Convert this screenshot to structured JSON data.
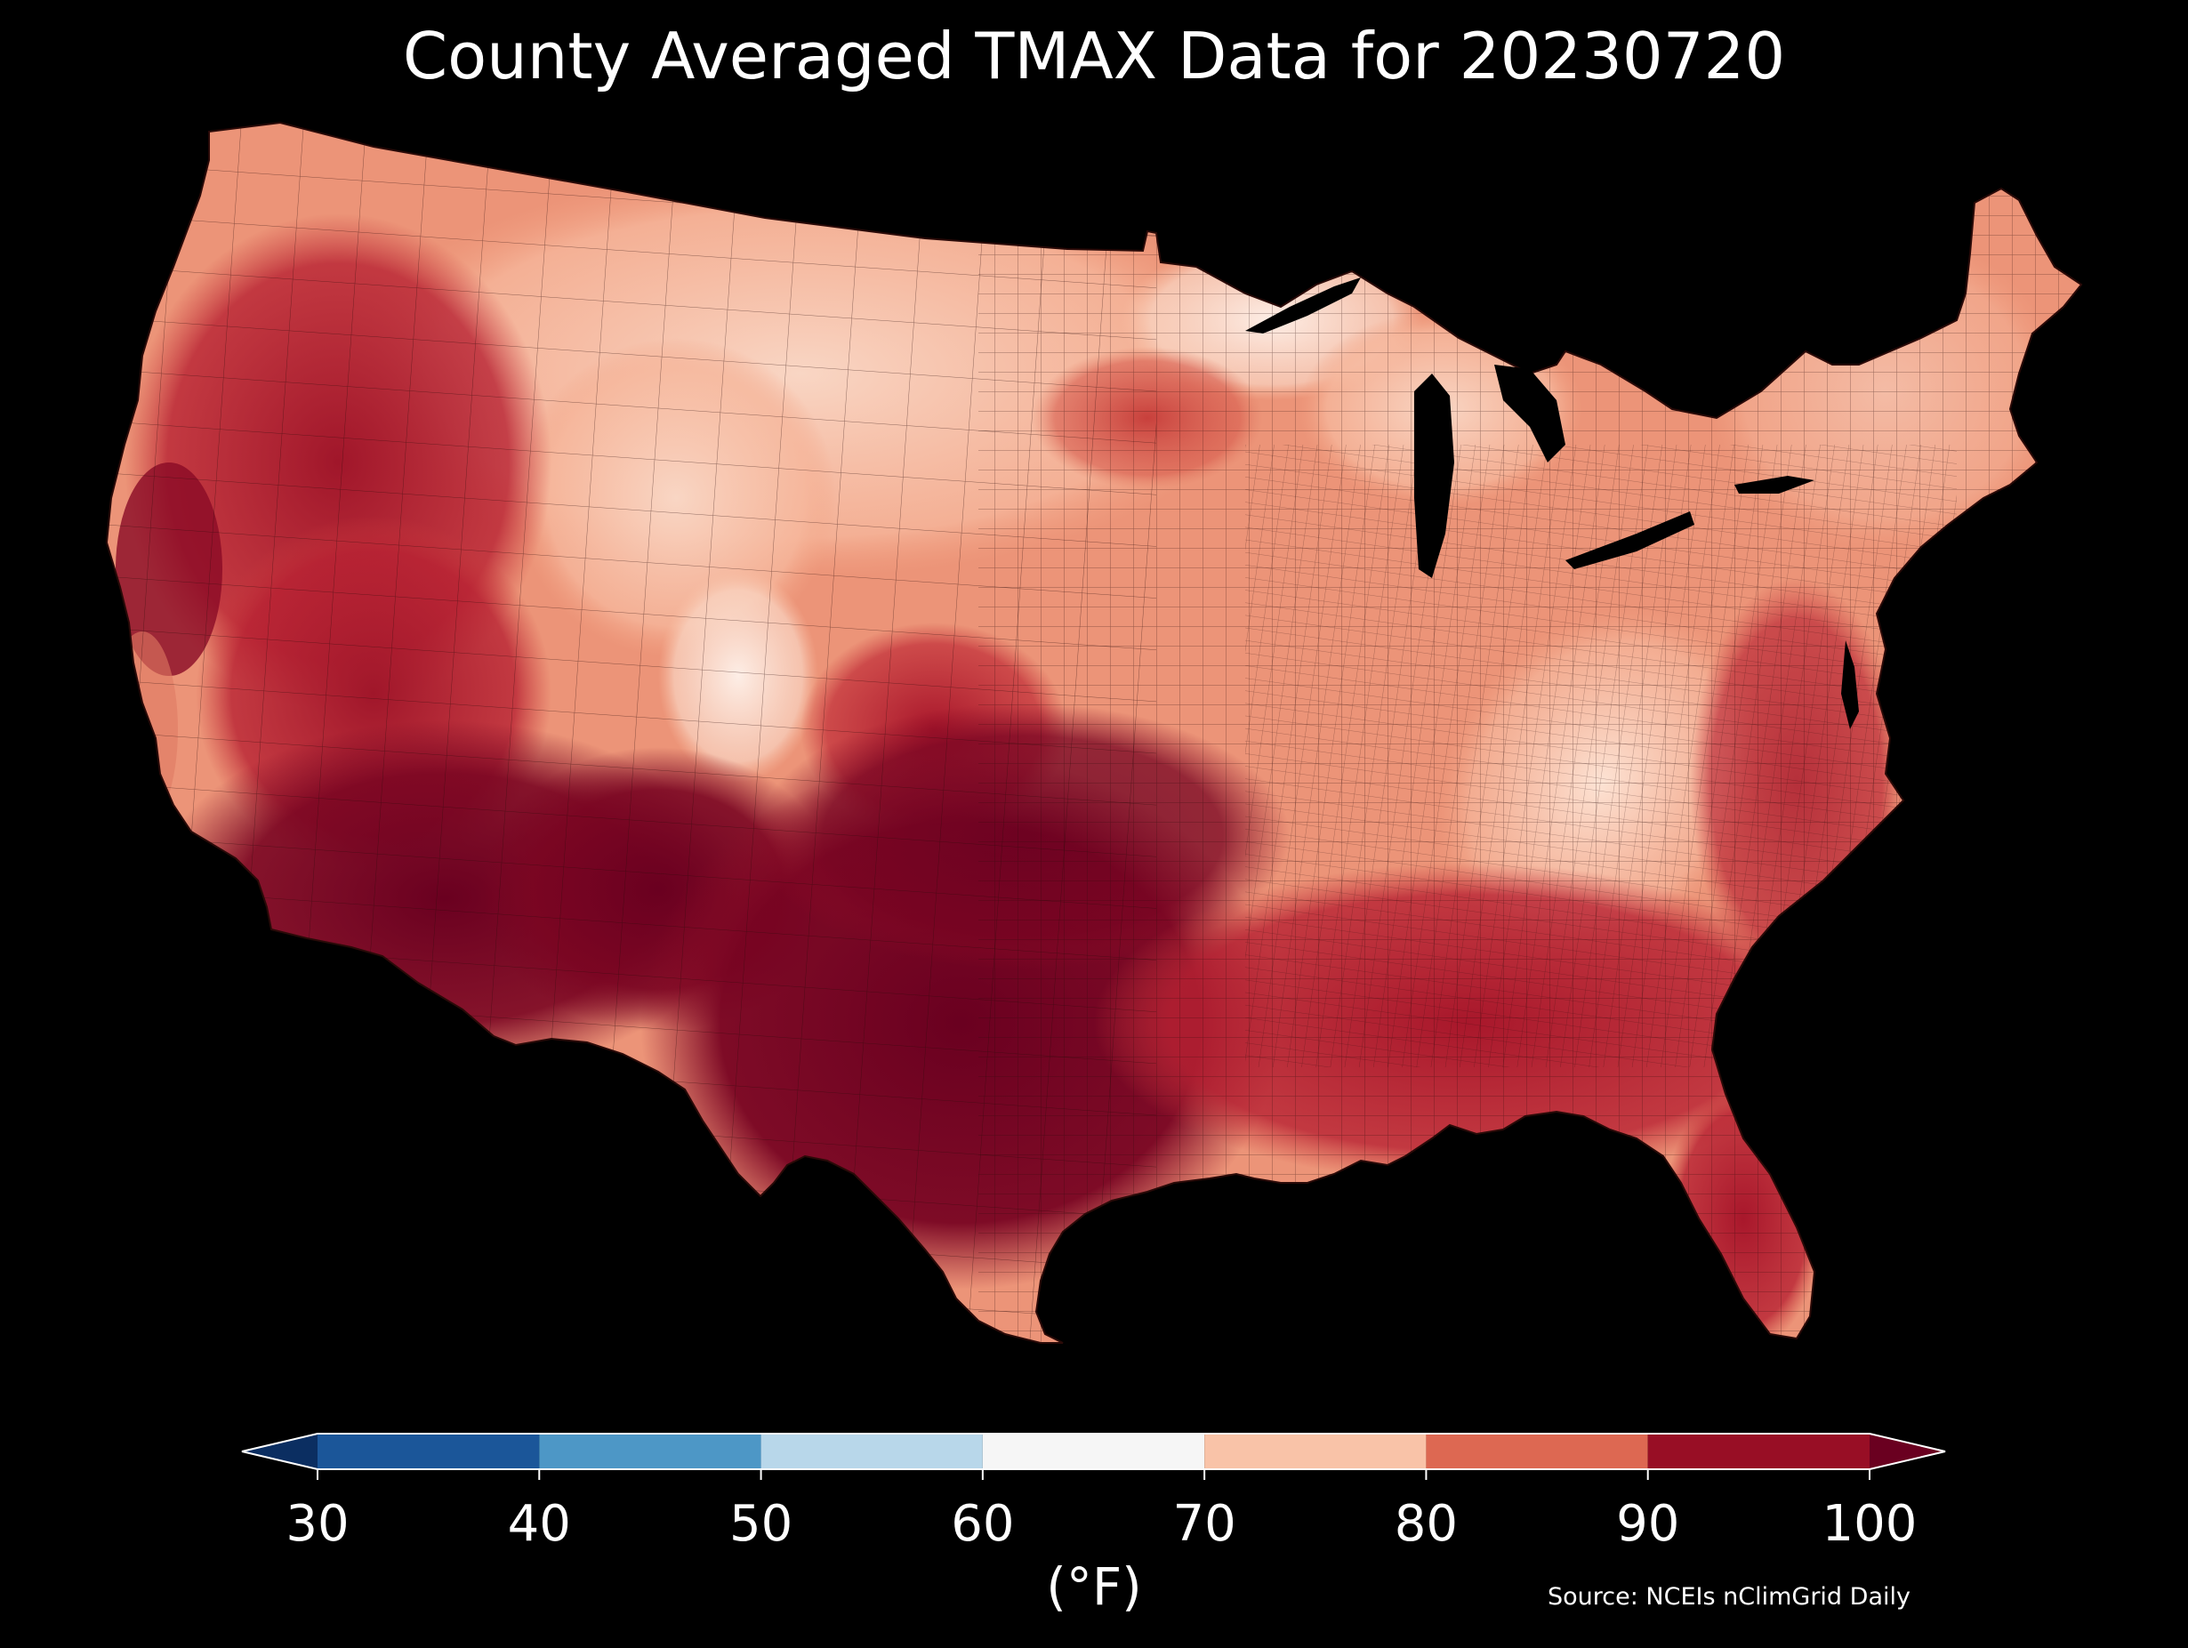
{
  "title": "County Averaged TMAX Data for 20230720",
  "source": "Source: NCEIs nClimGrid Daily",
  "colorbar": {
    "label": "(°F)",
    "min": 30,
    "max": 100,
    "ticks": [
      "30",
      "40",
      "50",
      "60",
      "70",
      "80",
      "90",
      "100"
    ],
    "bins": [
      {
        "from": 30,
        "to": 40,
        "color": "#1b5699"
      },
      {
        "from": 40,
        "to": 50,
        "color": "#4d97c6"
      },
      {
        "from": 50,
        "to": 60,
        "color": "#b8d7ea"
      },
      {
        "from": 60,
        "to": 70,
        "color": "#f6f6f6"
      },
      {
        "from": 70,
        "to": 80,
        "color": "#f9c3a8"
      },
      {
        "from": 80,
        "to": 90,
        "color": "#dd6852"
      },
      {
        "from": 90,
        "to": 100,
        "color": "#980e25"
      }
    ],
    "under_color": "#0b2e61",
    "over_color": "#6a0020",
    "extend": "both"
  },
  "map": {
    "region": "Contiguous United States",
    "unit": "county",
    "colors": {
      "hot": "#6a0020",
      "very_warm": "#a0162a",
      "warm": "#c93a3c",
      "mild_warm": "#e07a62",
      "mild": "#f2a283",
      "cool": "#f9d6c4",
      "coolest": "#fdeee6",
      "water": "#000000",
      "boundary": "#2a0a08"
    }
  }
}
